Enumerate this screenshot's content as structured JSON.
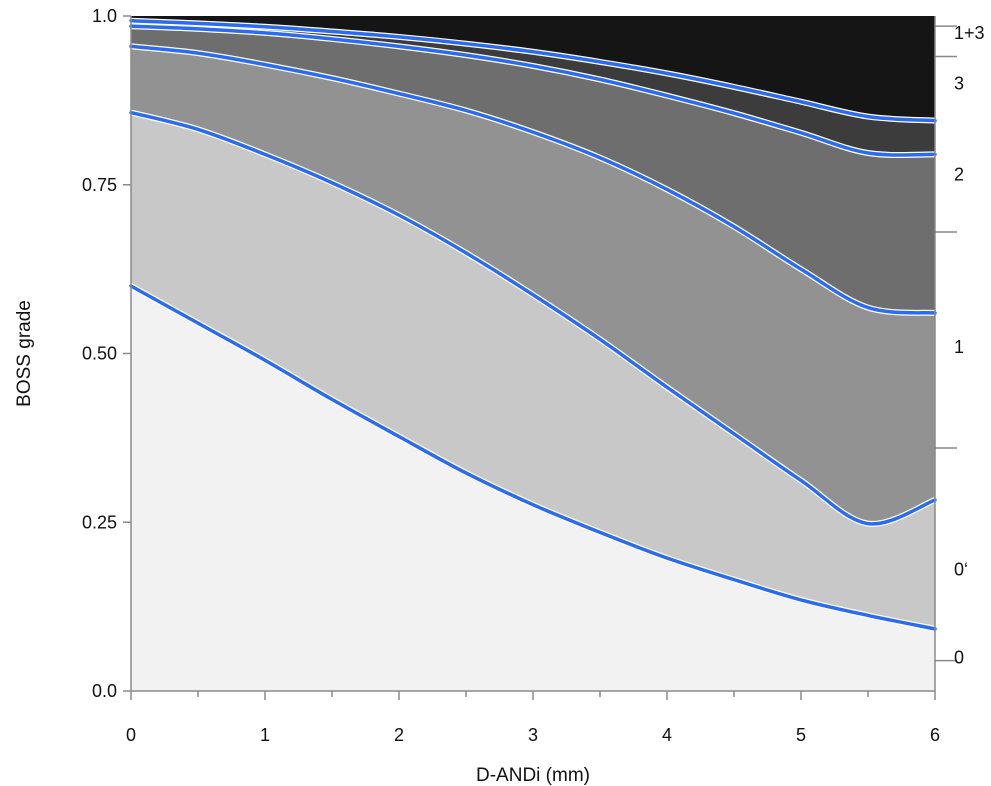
{
  "chart_data": {
    "type": "area",
    "title": "",
    "xlabel": "D-ANDi (mm)",
    "ylabel": "BOSS grade",
    "xlim": [
      0,
      6
    ],
    "ylim": [
      0,
      1
    ],
    "x_ticks": [
      "0",
      "1",
      "2",
      "3",
      "4",
      "5",
      "6"
    ],
    "y_ticks": [
      "0.0",
      "0.25",
      "0.50",
      "0.75",
      "1.0"
    ],
    "x_tick_values": [
      0,
      1,
      2,
      3,
      4,
      5,
      6
    ],
    "y_tick_values": [
      0,
      0.25,
      0.5,
      0.75,
      1.0
    ],
    "x_minor_step": 0.5,
    "grid": false,
    "boundary_color": "#2b6bf0",
    "x": [
      0,
      0.5,
      1,
      1.5,
      2,
      2.5,
      3,
      3.5,
      4,
      4.5,
      5,
      5.5,
      6
    ],
    "boundaries": [
      {
        "values": [
          0.6,
          0.545,
          0.49,
          0.432,
          0.377,
          0.323,
          0.276,
          0.235,
          0.197,
          0.165,
          0.135,
          0.112,
          0.092
        ]
      },
      {
        "values": [
          0.857,
          0.832,
          0.795,
          0.753,
          0.705,
          0.649,
          0.587,
          0.521,
          0.45,
          0.381,
          0.312,
          0.248,
          0.283
        ]
      },
      {
        "values": [
          0.955,
          0.945,
          0.928,
          0.908,
          0.885,
          0.86,
          0.828,
          0.79,
          0.743,
          0.688,
          0.625,
          0.568,
          0.56
        ]
      },
      {
        "values": [
          0.985,
          0.981,
          0.975,
          0.966,
          0.955,
          0.942,
          0.926,
          0.906,
          0.882,
          0.856,
          0.827,
          0.797,
          0.795
        ]
      },
      {
        "values": [
          0.993,
          0.989,
          0.984,
          0.977,
          0.969,
          0.959,
          0.947,
          0.932,
          0.915,
          0.895,
          0.873,
          0.851,
          0.845
        ]
      }
    ],
    "bands": [
      {
        "label": "0",
        "color": "#f2f2f2",
        "label_y": 0.05
      },
      {
        "label": "0‘",
        "color": "#c8c8c8",
        "label_y": 0.18
      },
      {
        "label": "1",
        "color": "#929292",
        "label_y": 0.51
      },
      {
        "label": "2",
        "color": "#6e6e6e",
        "label_y": 0.765
      },
      {
        "label": "3",
        "color": "#3c3c3c",
        "label_y": 0.9
      },
      {
        "label": "1+3",
        "color": "#151515",
        "label_y": 0.975
      }
    ],
    "right_ticks": [
      0.985,
      0.94,
      0.68,
      0.36,
      0.045
    ]
  }
}
